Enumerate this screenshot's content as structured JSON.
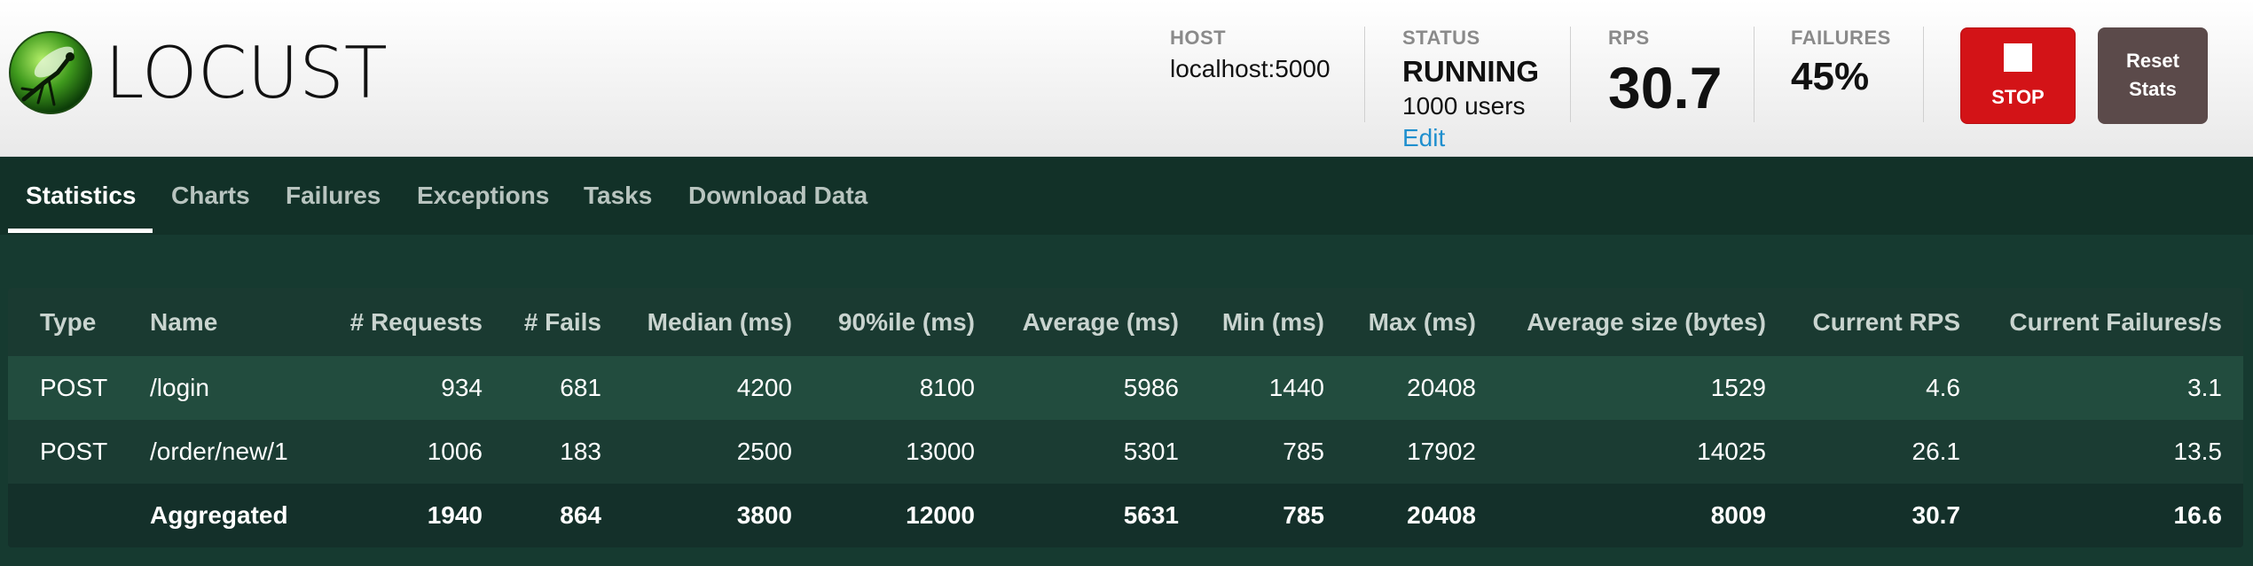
{
  "brand": {
    "name": "LOCUST",
    "logo_icon": "locust-logo-icon"
  },
  "header": {
    "host": {
      "label": "HOST",
      "value": "localhost:5000"
    },
    "status": {
      "label": "STATUS",
      "value": "RUNNING",
      "users": "1000 users",
      "edit": "Edit"
    },
    "rps": {
      "label": "RPS",
      "value": "30.7"
    },
    "failures": {
      "label": "FAILURES",
      "value": "45%"
    },
    "stop_button": {
      "label": "STOP",
      "icon": "stop-square-icon",
      "color": "#d31317"
    },
    "reset_button": {
      "line1": "Reset",
      "line2": "Stats",
      "color": "#5b4a4a"
    }
  },
  "nav": {
    "tabs": [
      {
        "label": "Statistics",
        "active": true
      },
      {
        "label": "Charts",
        "active": false
      },
      {
        "label": "Failures",
        "active": false
      },
      {
        "label": "Exceptions",
        "active": false
      },
      {
        "label": "Tasks",
        "active": false
      },
      {
        "label": "Download Data",
        "active": false
      }
    ]
  },
  "table": {
    "columns": [
      "Type",
      "Name",
      "# Requests",
      "# Fails",
      "Median (ms)",
      "90%ile (ms)",
      "Average (ms)",
      "Min (ms)",
      "Max (ms)",
      "Average size (bytes)",
      "Current RPS",
      "Current Failures/s"
    ],
    "rows": [
      [
        "POST",
        "/login",
        "934",
        "681",
        "4200",
        "8100",
        "5986",
        "1440",
        "20408",
        "1529",
        "4.6",
        "3.1"
      ],
      [
        "POST",
        "/order/new/1",
        "1006",
        "183",
        "2500",
        "13000",
        "5301",
        "785",
        "17902",
        "14025",
        "26.1",
        "13.5"
      ]
    ],
    "aggregated": [
      "",
      "Aggregated",
      "1940",
      "864",
      "3800",
      "12000",
      "5631",
      "785",
      "20408",
      "8009",
      "30.7",
      "16.6"
    ]
  },
  "colors": {
    "accent_link": "#1f8fce",
    "nav_bg": "#123128",
    "page_bg": "#163a30"
  }
}
